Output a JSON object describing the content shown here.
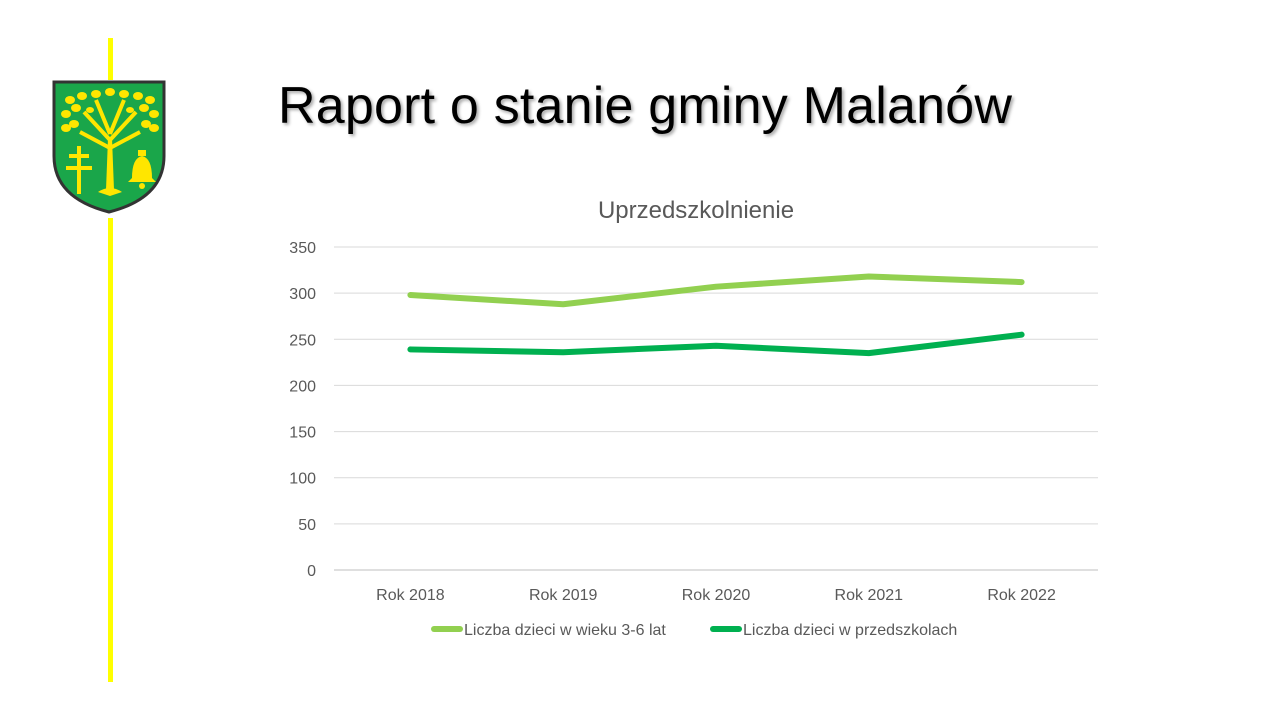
{
  "slide": {
    "title": "Raport o stanie gminy Malanów"
  },
  "colors": {
    "accent_line": "#ffff00",
    "series_light": "#92d050",
    "series_dark": "#00b050",
    "crest_green": "#1aa64a",
    "crest_gold": "#ffe600"
  },
  "chart_data": {
    "type": "line",
    "title": "Uprzedszkolnienie",
    "categories": [
      "Rok 2018",
      "Rok 2019",
      "Rok 2020",
      "Rok 2021",
      "Rok 2022"
    ],
    "yticks": [
      "0",
      "50",
      "100",
      "150",
      "200",
      "250",
      "300",
      "350"
    ],
    "ylim": [
      0,
      350
    ],
    "grid": true,
    "legend_position": "bottom",
    "series": [
      {
        "name": "Liczba dzieci w wieku 3-6 lat",
        "values": [
          298,
          288,
          307,
          318,
          312
        ],
        "color": "#92d050"
      },
      {
        "name": "Liczba dzieci w przedszkolach",
        "values": [
          239,
          236,
          243,
          235,
          255
        ],
        "color": "#00b050"
      }
    ]
  }
}
